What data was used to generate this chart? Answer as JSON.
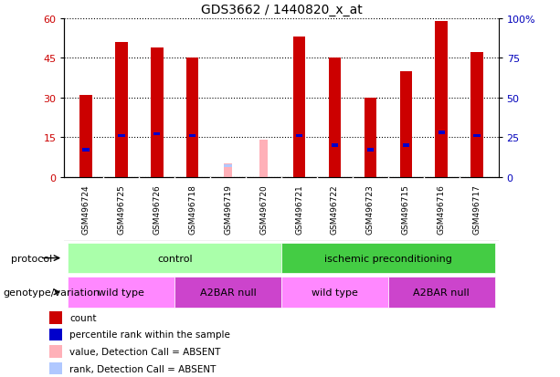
{
  "title": "GDS3662 / 1440820_x_at",
  "samples": [
    "GSM496724",
    "GSM496725",
    "GSM496726",
    "GSM496718",
    "GSM496719",
    "GSM496720",
    "GSM496721",
    "GSM496722",
    "GSM496723",
    "GSM496715",
    "GSM496716",
    "GSM496717"
  ],
  "count_values": [
    31,
    51,
    49,
    45,
    null,
    null,
    53,
    45,
    30,
    40,
    59,
    47
  ],
  "percentile_values": [
    17,
    26,
    27,
    26,
    null,
    null,
    26,
    20,
    17,
    20,
    28,
    26
  ],
  "absent_count": [
    null,
    null,
    null,
    null,
    5,
    14,
    null,
    null,
    null,
    null,
    null,
    null
  ],
  "absent_rank": [
    null,
    null,
    null,
    null,
    7,
    null,
    null,
    null,
    null,
    null,
    null,
    null
  ],
  "ylim_left": [
    0,
    60
  ],
  "ylim_right": [
    0,
    100
  ],
  "yticks_left": [
    0,
    15,
    30,
    45,
    60
  ],
  "yticks_right": [
    0,
    25,
    50,
    75,
    100
  ],
  "bar_width": 0.35,
  "count_color": "#cc0000",
  "percentile_color": "#0000cc",
  "absent_count_color": "#ffb0b8",
  "absent_rank_color": "#b0c8ff",
  "background_color": "#ffffff",
  "plot_bg_color": "#ffffff",
  "sample_bg_color": "#cccccc",
  "protocol_groups": [
    {
      "label": "control",
      "start": 0,
      "end": 5,
      "color": "#aaffaa"
    },
    {
      "label": "ischemic preconditioning",
      "start": 6,
      "end": 11,
      "color": "#44cc44"
    }
  ],
  "genotype_groups": [
    {
      "label": "wild type",
      "start": 0,
      "end": 2,
      "color": "#ff88ff"
    },
    {
      "label": "A2BAR null",
      "start": 3,
      "end": 5,
      "color": "#cc44cc"
    },
    {
      "label": "wild type",
      "start": 6,
      "end": 8,
      "color": "#ff88ff"
    },
    {
      "label": "A2BAR null",
      "start": 9,
      "end": 11,
      "color": "#cc44cc"
    }
  ],
  "legend_items": [
    {
      "label": "count",
      "color": "#cc0000"
    },
    {
      "label": "percentile rank within the sample",
      "color": "#0000cc"
    },
    {
      "label": "value, Detection Call = ABSENT",
      "color": "#ffb0b8"
    },
    {
      "label": "rank, Detection Call = ABSENT",
      "color": "#b0c8ff"
    }
  ]
}
